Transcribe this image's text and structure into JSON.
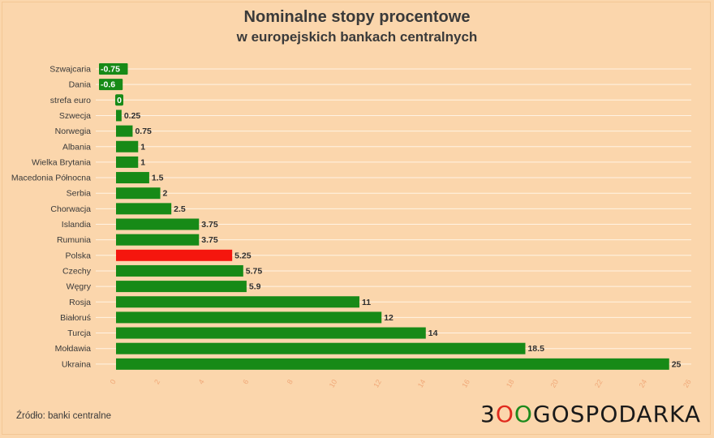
{
  "chart_data": {
    "type": "bar",
    "orientation": "horizontal",
    "title": "Nominalne stopy procentowe",
    "subtitle": "w europejskich bankach centralnych",
    "categories": [
      "Szwajcaria",
      "Dania",
      "strefa euro",
      "Szwecja",
      "Norwegia",
      "Albania",
      "Wielka Brytania",
      "Macedonia Północna",
      "Serbia",
      "Chorwacja",
      "Islandia",
      "Rumunia",
      "Polska",
      "Czechy",
      "Węgry",
      "Rosja",
      "Białoruś",
      "Turcja",
      "Mołdawia",
      "Ukraina"
    ],
    "values": [
      -0.75,
      -0.6,
      0,
      0.25,
      0.75,
      1,
      1,
      1.5,
      2,
      2.5,
      3.75,
      3.75,
      5.25,
      5.75,
      5.9,
      11,
      12,
      14,
      18.5,
      25
    ],
    "value_labels": [
      "-0.75",
      "-0.6",
      "0",
      "0.25",
      "0.75",
      "1",
      "1",
      "1.5",
      "2",
      "2.5",
      "3.75",
      "3.75",
      "5.25",
      "5.75",
      "5.9",
      "11",
      "12",
      "14",
      "18.5",
      "25"
    ],
    "highlight": "Polska",
    "xlim": [
      0,
      26
    ],
    "xticks": [
      "0",
      "2",
      "4",
      "6",
      "8",
      "10",
      "12",
      "14",
      "16",
      "18",
      "20",
      "22",
      "24",
      "26"
    ],
    "grid": true,
    "colors": {
      "bar": "#178a17",
      "highlight": "#f5160e",
      "background": "#fbd6ac",
      "grid": "#fff3e4"
    }
  },
  "footer": {
    "source": "Źródło: banki centralne",
    "logo": {
      "part1": "3",
      "part2": "O",
      "part3": "O",
      "part4": "GOSPODARKA"
    }
  }
}
